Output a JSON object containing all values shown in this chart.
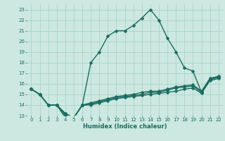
{
  "xlabel": "Humidex (Indice chaleur)",
  "xlim": [
    -0.5,
    22.5
  ],
  "ylim": [
    13,
    23.5
  ],
  "yticks": [
    13,
    14,
    15,
    16,
    17,
    18,
    19,
    20,
    21,
    22,
    23
  ],
  "xticks": [
    0,
    1,
    2,
    3,
    4,
    5,
    6,
    7,
    8,
    9,
    10,
    11,
    12,
    13,
    14,
    15,
    16,
    17,
    18,
    19,
    20,
    21,
    22
  ],
  "bg_color": "#cce8e0",
  "grid_color": "#aad4cc",
  "line_color": "#1a6b60",
  "line_width": 1.0,
  "marker": "D",
  "marker_size": 2.5,
  "lines": [
    {
      "x": [
        0,
        1,
        2,
        3,
        4,
        5,
        6,
        7,
        8,
        9,
        10,
        11,
        12,
        13,
        14,
        15,
        16,
        17,
        18,
        19,
        20,
        21,
        22
      ],
      "y": [
        15.5,
        15.0,
        14.0,
        14.0,
        12.8,
        12.8,
        14.0,
        18.0,
        19.0,
        20.5,
        21.0,
        21.0,
        21.5,
        22.2,
        23.0,
        22.0,
        20.3,
        19.0,
        17.5,
        17.2,
        15.2,
        16.5,
        16.7
      ]
    },
    {
      "x": [
        0,
        1,
        2,
        3,
        4,
        5,
        6,
        7,
        8,
        9,
        10,
        11,
        12,
        13,
        14,
        15,
        16,
        17,
        18,
        19,
        20,
        21,
        22
      ],
      "y": [
        15.5,
        15.0,
        14.0,
        14.0,
        13.2,
        12.8,
        14.0,
        14.2,
        14.4,
        14.6,
        14.8,
        14.9,
        15.0,
        15.2,
        15.3,
        15.3,
        15.5,
        15.7,
        15.8,
        15.9,
        15.3,
        16.5,
        16.7
      ]
    },
    {
      "x": [
        0,
        1,
        2,
        3,
        4,
        5,
        6,
        7,
        8,
        9,
        10,
        11,
        12,
        13,
        14,
        15,
        16,
        17,
        18,
        19,
        20,
        21,
        22
      ],
      "y": [
        15.5,
        15.0,
        14.0,
        14.0,
        13.2,
        12.8,
        14.0,
        14.1,
        14.3,
        14.5,
        14.7,
        14.8,
        14.9,
        15.0,
        15.2,
        15.2,
        15.4,
        15.6,
        15.7,
        15.8,
        15.2,
        16.4,
        16.6
      ]
    },
    {
      "x": [
        0,
        1,
        2,
        3,
        4,
        5,
        6,
        7,
        8,
        9,
        10,
        11,
        12,
        13,
        14,
        15,
        16,
        17,
        18,
        19,
        20,
        21,
        22
      ],
      "y": [
        15.5,
        15.0,
        14.0,
        14.0,
        13.0,
        12.8,
        14.0,
        14.0,
        14.2,
        14.4,
        14.6,
        14.7,
        14.8,
        14.9,
        15.0,
        15.1,
        15.2,
        15.3,
        15.5,
        15.6,
        15.1,
        16.3,
        16.5
      ]
    }
  ]
}
